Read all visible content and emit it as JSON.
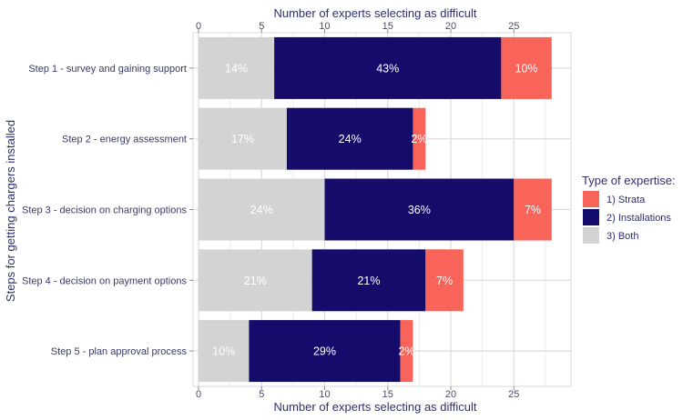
{
  "chart_data": {
    "type": "bar",
    "orientation": "horizontal",
    "stacked": true,
    "categories": [
      "Step 1 - survey and gaining support",
      "Step 2 - energy assessment",
      "Step 3 - decision on charging options",
      "Step 4 - decision on payment options",
      "Step 5 - plan approval process"
    ],
    "series": [
      {
        "name": "3) Both",
        "color": "#d3d3d3",
        "values": [
          6,
          7,
          10,
          9,
          4
        ],
        "labels": [
          "14%",
          "17%",
          "24%",
          "21%",
          "10%"
        ]
      },
      {
        "name": "2) Installations",
        "color": "#150b6b",
        "values": [
          18,
          10,
          15,
          9,
          12
        ],
        "labels": [
          "43%",
          "24%",
          "36%",
          "21%",
          "29%"
        ]
      },
      {
        "name": "1) Strata",
        "color": "#f8635a",
        "values": [
          4,
          1,
          3,
          3,
          1
        ],
        "labels": [
          "10%",
          "2%",
          "7%",
          "7%",
          "2%"
        ]
      }
    ],
    "xlabel_top": "Number of experts selecting as difficult",
    "xlabel_bottom": "Number of experts selecting as difficult",
    "ylabel": "Steps for getting chargers installed",
    "xlim": [
      0,
      29
    ],
    "xticks": [
      0,
      5,
      10,
      15,
      20,
      25
    ],
    "grid": true,
    "legend": {
      "title": "Type of expertise:",
      "position": "right",
      "entries": [
        {
          "label": "1) Strata",
          "color": "#f8635a"
        },
        {
          "label": "2) Installations",
          "color": "#150b6b"
        },
        {
          "label": "3) Both",
          "color": "#d3d3d3"
        }
      ]
    }
  }
}
